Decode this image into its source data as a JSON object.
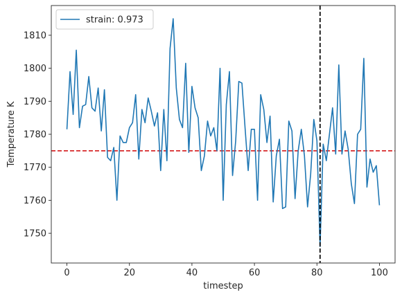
{
  "chart_data": {
    "type": "line",
    "xlabel": "timestep",
    "ylabel": "Temperature K",
    "xlim": [
      -5,
      105
    ],
    "ylim": [
      1741,
      1819
    ],
    "xticks": [
      0,
      20,
      40,
      60,
      80,
      100
    ],
    "yticks": [
      1750,
      1760,
      1770,
      1780,
      1790,
      1800,
      1810
    ],
    "grid": false,
    "legend_position": "top-left",
    "series": [
      {
        "name": "strain: 0.973",
        "color": "#1f77b4",
        "x": [
          0,
          1,
          2,
          3,
          4,
          5,
          6,
          7,
          8,
          9,
          10,
          11,
          12,
          13,
          14,
          15,
          16,
          17,
          18,
          19,
          20,
          21,
          22,
          23,
          24,
          25,
          26,
          27,
          28,
          29,
          30,
          31,
          32,
          33,
          34,
          35,
          36,
          37,
          38,
          39,
          40,
          41,
          42,
          43,
          44,
          45,
          46,
          47,
          48,
          49,
          50,
          51,
          52,
          53,
          54,
          55,
          56,
          57,
          58,
          59,
          60,
          61,
          62,
          63,
          64,
          65,
          66,
          67,
          68,
          69,
          70,
          71,
          72,
          73,
          74,
          75,
          76,
          77,
          78,
          79,
          80,
          81,
          82,
          83,
          84,
          85,
          86,
          87,
          88,
          89,
          90,
          91,
          92,
          93,
          94,
          95,
          96,
          97,
          98,
          99,
          100
        ],
        "values": [
          1781.5,
          1799,
          1786,
          1805.5,
          1782,
          1788.5,
          1789,
          1797.5,
          1788,
          1787,
          1794,
          1781,
          1793.5,
          1773,
          1772,
          1776,
          1760,
          1779.5,
          1777.5,
          1777.5,
          1782,
          1783.5,
          1792,
          1772.5,
          1787.5,
          1783.5,
          1791,
          1787,
          1782.5,
          1786.5,
          1769,
          1787.5,
          1772,
          1806,
          1815,
          1794,
          1784.5,
          1782,
          1801.5,
          1774.5,
          1794.5,
          1788,
          1785,
          1769,
          1773.5,
          1784,
          1779.5,
          1782,
          1775,
          1800,
          1760,
          1789,
          1799,
          1767.5,
          1778,
          1796,
          1795.5,
          1782,
          1769,
          1781.5,
          1781.5,
          1760,
          1792,
          1787.5,
          1777.5,
          1785.5,
          1759.5,
          1773.5,
          1778.5,
          1757.5,
          1758,
          1784,
          1781,
          1760.5,
          1775,
          1781.5,
          1773.5,
          1758,
          1768,
          1784.5,
          1778,
          1746,
          1777,
          1772,
          1780,
          1788,
          1774,
          1801,
          1774,
          1781,
          1775.5,
          1765,
          1759,
          1780,
          1781.5,
          1803,
          1764,
          1772.5,
          1768.5,
          1770.5,
          1758.5
        ]
      }
    ],
    "hlines": [
      {
        "y": 1775,
        "color": "#d62728",
        "style": "dashed"
      }
    ],
    "vlines": [
      {
        "x": 81,
        "color": "#000000",
        "style": "dashed"
      }
    ]
  }
}
